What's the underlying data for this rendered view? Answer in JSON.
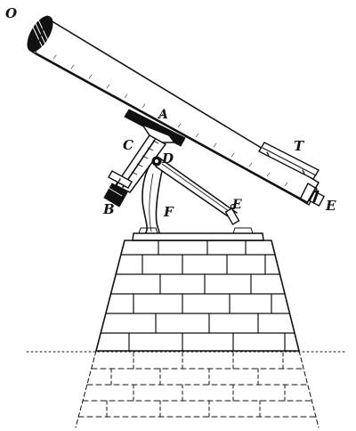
{
  "labels": {
    "objective": "O",
    "declination_axis": "A",
    "counterweight": "B",
    "axis_sleeve": "C",
    "clamp": "D",
    "eyepiece": "E",
    "clamp_rod": "E",
    "support": "F",
    "finder": "T"
  },
  "colors": {
    "ink": "#111111",
    "paper": "#ffffff"
  }
}
